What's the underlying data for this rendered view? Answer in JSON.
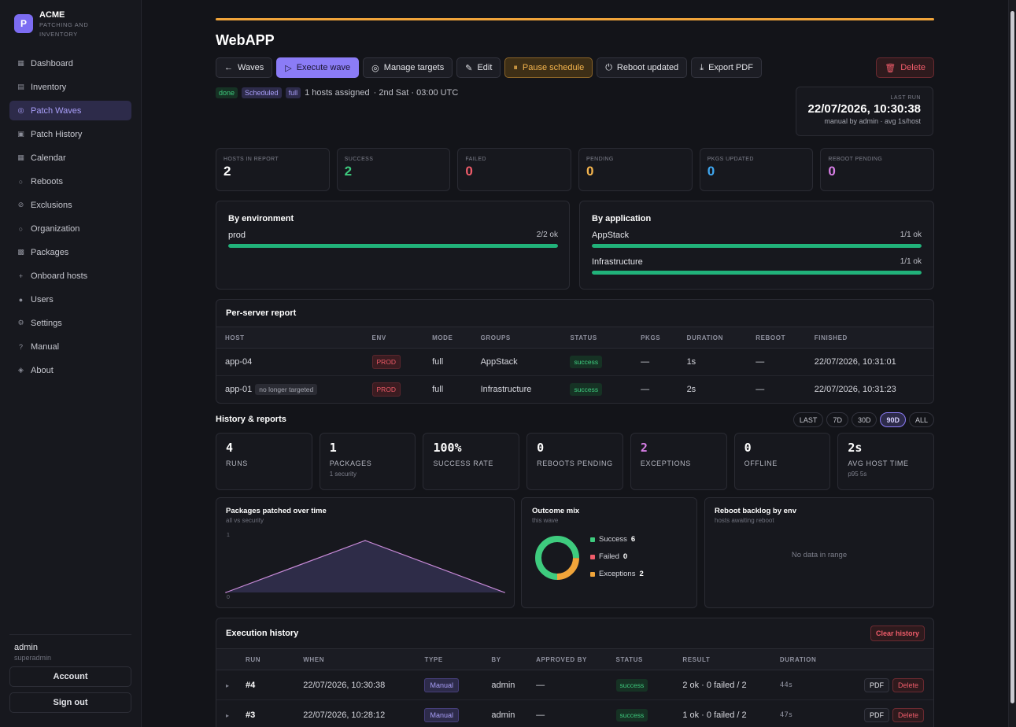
{
  "brand": {
    "logo_letter": "P",
    "name": "ACME",
    "subtitle": "PATCHING AND INVENTORY"
  },
  "nav": [
    {
      "label": "Dashboard",
      "icon": "dashboard-icon"
    },
    {
      "label": "Inventory",
      "icon": "inventory-icon"
    },
    {
      "label": "Patch Waves",
      "icon": "patch-waves-icon",
      "active": true
    },
    {
      "label": "Patch History",
      "icon": "history-icon"
    },
    {
      "label": "Calendar",
      "icon": "calendar-icon"
    },
    {
      "label": "Reboots",
      "icon": "reboot-icon"
    },
    {
      "label": "Exclusions",
      "icon": "exclusion-icon"
    },
    {
      "label": "Organization",
      "icon": "organization-icon"
    },
    {
      "label": "Packages",
      "icon": "package-icon"
    },
    {
      "label": "Onboard hosts",
      "icon": "plus-icon"
    },
    {
      "label": "Users",
      "icon": "users-icon"
    },
    {
      "label": "Settings",
      "icon": "gear-icon"
    },
    {
      "label": "Manual",
      "icon": "question-icon"
    },
    {
      "label": "About",
      "icon": "info-icon"
    }
  ],
  "user": {
    "name": "admin",
    "role": "superadmin",
    "account_label": "Account",
    "signout_label": "Sign out"
  },
  "page": {
    "title": "WebAPP"
  },
  "toolbar": {
    "waves": "Waves",
    "execute": "Execute wave",
    "manage": "Manage targets",
    "edit": "Edit",
    "pause": "Pause schedule",
    "reboot": "Reboot updated",
    "export": "Export PDF",
    "delete": "Delete"
  },
  "meta": {
    "status": "done",
    "type": "Scheduled",
    "mode": "full",
    "hosts": "1 hosts assigned",
    "schedule": "· 2nd Sat · 03:00 UTC"
  },
  "last_run": {
    "label": "LAST RUN",
    "value": "22/07/2026, 10:30:38",
    "sub": "manual by admin · avg 1s/host"
  },
  "stats": [
    {
      "label": "HOSTS IN REPORT",
      "value": "2",
      "color": "#ffffff"
    },
    {
      "label": "SUCCESS",
      "value": "2",
      "color": "#3ecb7e"
    },
    {
      "label": "FAILED",
      "value": "0",
      "color": "#ef5c6a"
    },
    {
      "label": "PENDING",
      "value": "0",
      "color": "#f5b54e"
    },
    {
      "label": "PKGS UPDATED",
      "value": "0",
      "color": "#3fa7f0"
    },
    {
      "label": "REBOOT PENDING",
      "value": "0",
      "color": "#d77ee6"
    }
  ],
  "by_env": {
    "title": "By environment",
    "rows": [
      {
        "name": "prod",
        "ratio": "2/2 ok",
        "fraction": 1
      }
    ]
  },
  "by_app": {
    "title": "By application",
    "rows": [
      {
        "name": "AppStack",
        "ratio": "1/1 ok",
        "fraction": 1
      },
      {
        "name": "Infrastructure",
        "ratio": "1/1 ok",
        "fraction": 1
      }
    ]
  },
  "report": {
    "title": "Per-server report",
    "columns": [
      "HOST",
      "ENV",
      "MODE",
      "GROUPS",
      "STATUS",
      "PKGS",
      "DURATION",
      "REBOOT",
      "FINISHED"
    ],
    "rows": [
      {
        "host": "app-04",
        "note": "",
        "env": "PROD",
        "mode": "full",
        "groups": "AppStack",
        "status": "success",
        "pkgs": "—",
        "duration": "1s",
        "reboot": "—",
        "finished": "22/07/2026, 10:31:01"
      },
      {
        "host": "app-01",
        "note": "no longer targeted",
        "env": "PROD",
        "mode": "full",
        "groups": "Infrastructure",
        "status": "success",
        "pkgs": "—",
        "duration": "2s",
        "reboot": "—",
        "finished": "22/07/2026, 10:31:23"
      }
    ]
  },
  "history": {
    "title": "History & reports",
    "ranges": [
      "LAST",
      "7D",
      "30D",
      "90D",
      "ALL"
    ],
    "active_range": "90D",
    "kpis": [
      {
        "value": "4",
        "label": "RUNS",
        "sub": ""
      },
      {
        "value": "1",
        "label": "PACKAGES",
        "sub": "1 security"
      },
      {
        "value": "100%",
        "label": "SUCCESS RATE",
        "sub": ""
      },
      {
        "value": "0",
        "label": "REBOOTS PENDING",
        "sub": ""
      },
      {
        "value": "2",
        "label": "EXCEPTIONS",
        "sub": "",
        "color": "#d77ee6"
      },
      {
        "value": "0",
        "label": "OFFLINE",
        "sub": ""
      },
      {
        "value": "2s",
        "label": "AVG HOST TIME",
        "sub": "p95 5s"
      }
    ]
  },
  "chart_data": [
    {
      "type": "area",
      "title": "Packages patched over time",
      "subtitle": "all vs security",
      "x": [
        0,
        1,
        2
      ],
      "values": [
        0,
        1,
        0
      ],
      "ylim": [
        0,
        1
      ],
      "ytick_labels": [
        "1",
        "0"
      ],
      "color": "#c98bd9"
    },
    {
      "type": "pie",
      "title": "Outcome mix",
      "subtitle": "this wave",
      "slices": [
        {
          "name": "Success",
          "value": 6,
          "color": "#3ecb7e"
        },
        {
          "name": "Failed",
          "value": 0,
          "color": "#ef5c6a"
        },
        {
          "name": "Exceptions",
          "value": 2,
          "color": "#f0a43a"
        }
      ]
    },
    {
      "type": "bar",
      "title": "Reboot backlog by env",
      "subtitle": "hosts awaiting reboot",
      "empty_text": "No data in range",
      "values": []
    }
  ],
  "exec": {
    "title": "Execution history",
    "clear_label": "Clear history",
    "columns": [
      "RUN",
      "WHEN",
      "TYPE",
      "BY",
      "APPROVED BY",
      "STATUS",
      "RESULT",
      "DURATION"
    ],
    "rows": [
      {
        "run": "#4",
        "when": "22/07/2026, 10:30:38",
        "type": "Manual",
        "by": "admin",
        "approved": "—",
        "status": "success",
        "result": "2 ok · 0 failed / 2",
        "duration": "44s",
        "pdf": "PDF",
        "delete": "Delete"
      },
      {
        "run": "#3",
        "when": "22/07/2026, 10:28:12",
        "type": "Manual",
        "by": "admin",
        "approved": "—",
        "status": "success",
        "result": "1 ok · 0 failed / 2",
        "duration": "47s",
        "pdf": "PDF",
        "delete": "Delete"
      }
    ]
  }
}
